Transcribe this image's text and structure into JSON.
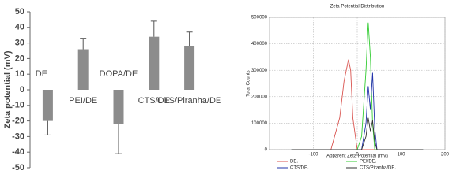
{
  "chart_data": [
    {
      "type": "bar",
      "y_label": "Zeta potential (mV)",
      "categories": [
        "DE",
        "PEI/DE",
        "DOPA/DE",
        "CTS/DE",
        "CTS/Piranha/DE"
      ],
      "values": [
        -20,
        26,
        -22,
        34,
        28
      ],
      "errors": [
        9,
        7,
        19,
        10,
        9
      ],
      "color": "#8c8c8c",
      "ylim": [
        -50,
        50
      ],
      "yticks": [
        -50,
        -40,
        -30,
        -20,
        -10,
        0,
        10,
        20,
        30,
        40,
        50
      ]
    },
    {
      "type": "line",
      "title": "Zeta Potential Distribution",
      "x_label": "Apparent Zeta Potential (mV)",
      "y_label": "Total Counts",
      "x": [
        -150,
        -60,
        -40,
        -30,
        -20,
        -15,
        -10,
        0,
        10,
        20,
        25,
        30,
        35,
        40,
        45,
        50,
        60,
        150
      ],
      "series": [
        {
          "name": "DE.",
          "color": "#d9534f",
          "values": [
            0,
            0,
            120000,
            260000,
            340000,
            300000,
            120000,
            0,
            0,
            0,
            0,
            0,
            0,
            0,
            0,
            0,
            0,
            0
          ]
        },
        {
          "name": "PEI/DE.",
          "color": "#33cc33",
          "values": [
            0,
            0,
            0,
            0,
            0,
            0,
            0,
            0,
            50000,
            300000,
            480000,
            350000,
            100000,
            0,
            0,
            0,
            0,
            0
          ]
        },
        {
          "name": "CTS/DE.",
          "color": "#2233aa",
          "values": [
            0,
            0,
            0,
            0,
            0,
            0,
            0,
            0,
            0,
            100000,
            240000,
            150000,
            290000,
            80000,
            0,
            0,
            0,
            0
          ]
        },
        {
          "name": "CTS/Piranha/DE.",
          "color": "#333333",
          "values": [
            0,
            0,
            0,
            0,
            0,
            0,
            0,
            0,
            0,
            50000,
            120000,
            70000,
            110000,
            30000,
            0,
            0,
            0,
            0
          ]
        }
      ],
      "xlim": [
        -200,
        200
      ],
      "xticks": [
        -100,
        0,
        100,
        200
      ],
      "ylim": [
        0,
        500000
      ],
      "yticks": [
        0,
        100000,
        200000,
        300000,
        400000,
        500000
      ],
      "grid": true
    }
  ]
}
